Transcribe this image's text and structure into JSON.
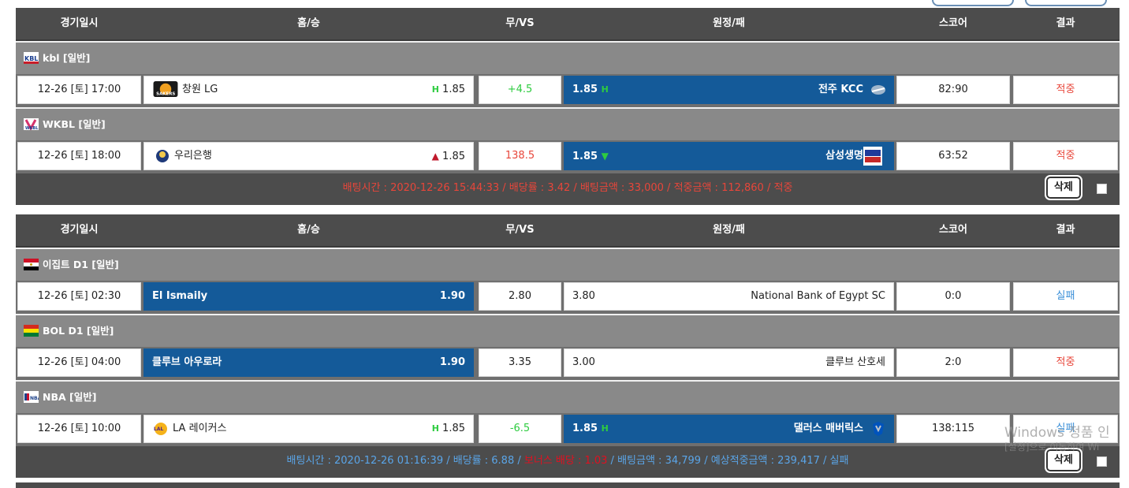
{
  "header": {
    "col_date": "경기일시",
    "col_home": "홈/승",
    "col_draw": "무/VS",
    "col_away": "원정/패",
    "col_score": "스코어",
    "col_result": "결과"
  },
  "slip1": {
    "leagues": [
      {
        "name": "kbl [일반]",
        "game": {
          "date": "12-26 [토] 17:00",
          "home_team": "창원 LG",
          "home_mark": "H",
          "home_odds": "1.85",
          "draw": "+4.5",
          "away_odds": "1.85",
          "away_mark": "H",
          "away_team": "전주 KCC",
          "score": "82:90",
          "result": "적중"
        }
      },
      {
        "name": "WKBL [일반]",
        "game": {
          "date": "12-26 [토] 18:00",
          "home_team": "우리은행",
          "home_mark": "▲",
          "home_odds": "1.85",
          "draw": "138.5",
          "away_odds": "1.85",
          "away_mark": "▼",
          "away_team": "삼성생명",
          "score": "63:52",
          "result": "적중"
        }
      }
    ],
    "summary": {
      "bet_time": "배팅시간 : 2020-12-26 15:44:33",
      "sep": " / ",
      "odds": "배당률 : 3.42",
      "amount": "배팅금액 : 33,000",
      "win_amount": "적중금액 : 112,860",
      "status": "적중"
    },
    "delete_label": "삭제"
  },
  "slip2": {
    "leagues": [
      {
        "name": "이집트 D1 [일반]",
        "game": {
          "date": "12-26 [토] 02:30",
          "home_team": "El Ismaily",
          "home_odds": "1.90",
          "draw": "2.80",
          "away_odds": "3.80",
          "away_team": "National Bank of Egypt SC",
          "score": "0:0",
          "result": "실패"
        }
      },
      {
        "name": "BOL D1 [일반]",
        "game": {
          "date": "12-26 [토] 04:00",
          "home_team": "클루브 아우로라",
          "home_odds": "1.90",
          "draw": "3.35",
          "away_odds": "3.00",
          "away_team": "클루브 산호세",
          "score": "2:0",
          "result": "적중"
        }
      },
      {
        "name": "NBA [일반]",
        "game": {
          "date": "12-26 [토] 10:00",
          "home_team": "LA 레이커스",
          "home_mark": "H",
          "home_odds": "1.85",
          "draw": "-6.5",
          "away_odds": "1.85",
          "away_mark": "H",
          "away_team": "댈러스 매버릭스",
          "score": "138:115",
          "result": "실패"
        }
      }
    ],
    "summary": {
      "bet_time": "배팅시간 : 2020-12-26 01:16:39",
      "sep": " / ",
      "odds": "배당률 : 6.88",
      "bonus": "보너스 배당 : 1.03",
      "amount": "배팅금액 : 34,799",
      "expected": "예상적중금액 : 239,417",
      "status": "실패"
    },
    "delete_label": "삭제"
  },
  "watermark": {
    "line1": "Windows 정품 인",
    "line2": "[설정]으로 이동하여 Wi"
  },
  "colors": {
    "header_bg": "#4c4c4c",
    "league_bg": "#898989",
    "selected_bg": "#145a99",
    "win_red": "#e8463a",
    "lose_blue": "#3a8fd8",
    "handicap_green": "#2ecc40"
  }
}
